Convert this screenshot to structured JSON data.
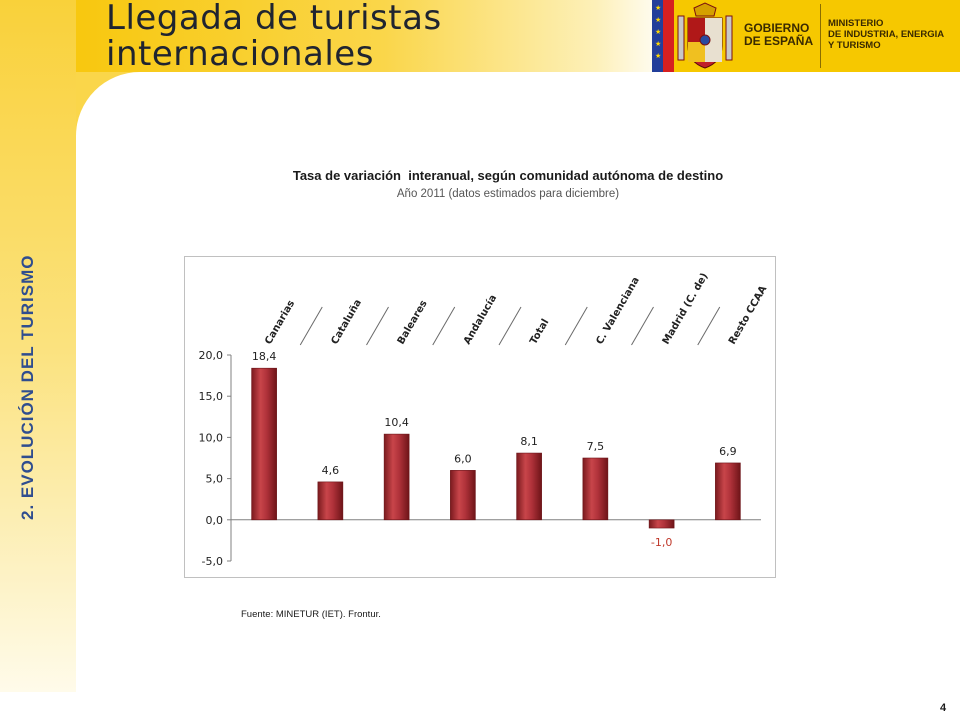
{
  "slide": {
    "title_line1": "Llegada de turistas",
    "title_line2": "internacionales",
    "section_label": "2. EVOLUCIÓN DEL TURISMO",
    "page_number": "4",
    "source": "Fuente: MINETUR (IET). Frontur."
  },
  "logo": {
    "gobierno_line1": "GOBIERNO",
    "gobierno_line2": "DE ESPAÑA",
    "ministry_line1": "MINISTERIO",
    "ministry_line2": "DE INDUSTRIA, ENERGIA",
    "ministry_line3": "Y TURISMO"
  },
  "colors": {
    "brand_yellow": "#f7c400",
    "section_blue": "#2f4d8f",
    "bar_red": "#a0262b",
    "negative_label": "#c0392b"
  },
  "chart_data": {
    "type": "bar",
    "title": "Tasa de variación  interanual, según comunidad autónoma de destino",
    "subtitle": "Año 2011 (datos estimados para diciembre)",
    "categories": [
      "Canarias",
      "Cataluña",
      "Baleares",
      "Andalucía",
      "Total",
      "C. Valenciana",
      "Madrid (C. de)",
      "Resto CCAA"
    ],
    "values": [
      18.4,
      4.6,
      10.4,
      6.0,
      8.1,
      7.5,
      -1.0,
      6.9
    ],
    "value_labels": [
      "18,4",
      "4,6",
      "10,4",
      "6,0",
      "8,1",
      "7,5",
      "-1,0",
      "6,9"
    ],
    "ylim": [
      -5,
      20
    ],
    "yticks": [
      -5,
      0,
      5,
      10,
      15,
      20
    ],
    "ytick_labels": [
      "-5,0",
      "0,0",
      "5,0",
      "10,0",
      "15,0",
      "20,0"
    ],
    "category_axis_position": "top",
    "legend": "none",
    "grid": false
  }
}
